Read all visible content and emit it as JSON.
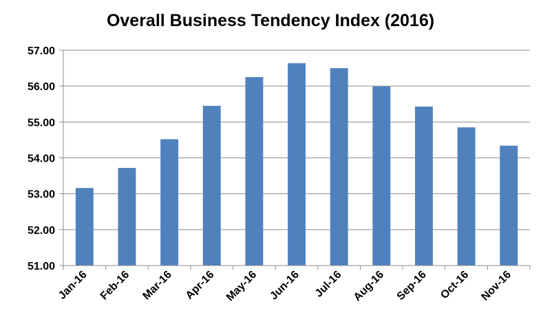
{
  "chart_data": {
    "type": "bar",
    "title": "Overall Business Tendency Index (2016)",
    "xlabel": "",
    "ylabel": "",
    "categories": [
      "Jan-16",
      "Feb-16",
      "Mar-16",
      "Apr-16",
      "May-16",
      "Jun-16",
      "Jul-16",
      "Aug-16",
      "Sep-16",
      "Oct-16",
      "Nov-16"
    ],
    "values": [
      53.16,
      53.72,
      54.52,
      55.45,
      56.25,
      56.64,
      56.5,
      55.99,
      55.43,
      54.85,
      54.34
    ],
    "ylim": [
      51.0,
      57.0
    ],
    "yticks": [
      "51.00",
      "52.00",
      "53.00",
      "54.00",
      "55.00",
      "56.00",
      "57.00"
    ],
    "grid": true,
    "legend": "none",
    "bar_color": "#4f81bd"
  }
}
